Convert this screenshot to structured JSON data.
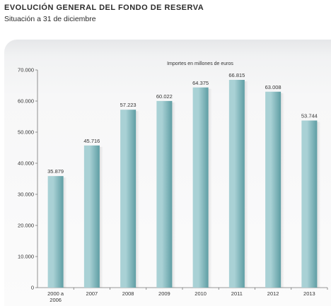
{
  "header": {
    "title": "EVOLUCIÓN GENERAL DEL FONDO DE RESERVA",
    "subtitle": "Situación a 31 de diciembre"
  },
  "colors": {
    "bar_light": "#a9d1d5",
    "bar_dark": "#5f9ea4",
    "axis": "#777777"
  },
  "chart_data": {
    "type": "bar",
    "title": "Importes en millones de euros",
    "categories": [
      [
        "2000 a",
        "2006"
      ],
      [
        "2007"
      ],
      [
        "2008"
      ],
      [
        "2009"
      ],
      [
        "2010"
      ],
      [
        "2011"
      ],
      [
        "2012"
      ],
      [
        "2013"
      ]
    ],
    "values": [
      35879,
      45716,
      57223,
      60022,
      64375,
      66815,
      63008,
      53744
    ],
    "value_labels": [
      "35.879",
      "45.716",
      "57.223",
      "60.022",
      "64.375",
      "66.815",
      "63.008",
      "53.744"
    ],
    "yticks": [
      0,
      10000,
      20000,
      30000,
      40000,
      50000,
      60000,
      70000
    ],
    "ytick_labels": [
      "0",
      "10.000",
      "20.000",
      "30.000",
      "40.000",
      "50.000",
      "60.000",
      "70.000"
    ],
    "ylim": [
      0,
      70000
    ],
    "xlabel": "",
    "ylabel": "",
    "grid": false,
    "legend": "none"
  }
}
